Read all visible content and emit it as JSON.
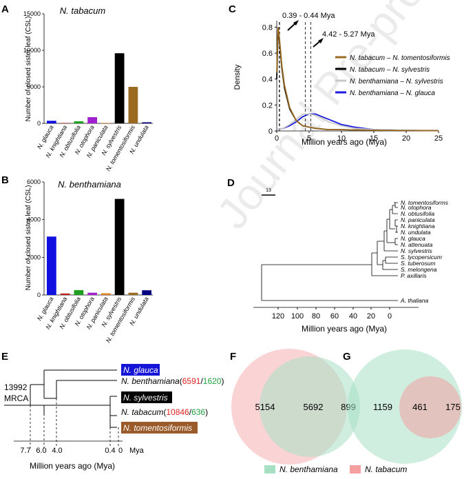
{
  "watermark": "Journal Pre-proof",
  "panels": {
    "A": {
      "letter": "A",
      "title": "N. tabacum",
      "ylabel": "Number of closed sister leaf (CSL)",
      "yticks": [
        "0",
        "5000",
        "10000",
        "15000"
      ]
    },
    "B": {
      "letter": "B",
      "title": "N. benthamiana",
      "ylabel": "Number of closed sister leaf (CSL)",
      "yticks": [
        "0",
        "2000",
        "4000",
        "6000"
      ]
    },
    "C": {
      "letter": "C",
      "xlabel": "Million years ago (Mya)",
      "ylabel": "Density",
      "ann1": "0.39 - 0.44 Mya",
      "ann2": "4.42 - 5.27 Mya",
      "xticks": [
        "0",
        "5",
        "10",
        "15",
        "20",
        "25"
      ],
      "yticks": [
        "0",
        "0.2",
        "0.4",
        "0.6",
        "0.8"
      ],
      "legend": [
        "N. tabacum – N. tomentosiformis",
        "N. tabacum – N. sylvestris",
        "N. benthamiana – N. sylvestris",
        "N. benthamiana – N. glauca"
      ]
    },
    "D": {
      "letter": "D",
      "scale": "13",
      "xlabel": "Million years ago (Mya)",
      "xticks": [
        "120",
        "100",
        "80",
        "60",
        "40",
        "20",
        "0"
      ],
      "taxa": [
        "N. tomentosiforms",
        "N. otophora",
        "N. obtusifolia",
        "N. paniculata",
        "N. knightiana",
        "N. undulata",
        "N. glauca",
        "N. attenuata",
        "N. sylvestris",
        "S. lycopersicum",
        "S. tuberosum",
        "S. melongena",
        "P. axillaris",
        "A. thaliana"
      ]
    },
    "E": {
      "letter": "E",
      "count": "13992",
      "mrca": "MRCA",
      "mya": "Mya",
      "xlabel": "Million years ago (Mya)",
      "ticks": [
        "7.7",
        "6.0",
        "4.0",
        "0.4",
        "0"
      ],
      "t1": "N. glauca",
      "t2": "N. benthamiana",
      "t2a": "(",
      "t2b": "6591",
      "t2c": "/",
      "t2d": "1620",
      "t2e": ")",
      "t3": "N. sylvestris",
      "t4": "N. tabacum",
      "t4a": "(",
      "t4b": "10846",
      "t4c": "/",
      "t4d": "636",
      "t4e": ")",
      "t5": "N. tomentosiformis"
    },
    "F": {
      "letter": "F",
      "left": "5154",
      "mid": "5692",
      "right": "899"
    },
    "G": {
      "letter": "G",
      "left": "1159",
      "mid": "461",
      "right": "175"
    },
    "legend": {
      "benth": "N. benthamiana",
      "tab": "N. tabacum"
    }
  },
  "chart_data": [
    {
      "type": "bar",
      "title": "N. tabacum",
      "ylabel": "Number of closed sister leaf (CSL)",
      "ylim": [
        0,
        15000
      ],
      "categories": [
        "N. glauca",
        "N. knightiana",
        "N. obtusifolia",
        "N. otophora",
        "N. paniculata",
        "N. sylvestris",
        "N. tomentosiformis",
        "N. undulata"
      ],
      "values": [
        350,
        60,
        280,
        850,
        60,
        9600,
        5000,
        150
      ],
      "colors": [
        "#1010e0",
        "#c02020",
        "#20a020",
        "#a020d0",
        "#e08020",
        "#000000",
        "#9a6a20",
        "#000080"
      ]
    },
    {
      "type": "bar",
      "title": "N. benthamiana",
      "ylabel": "Number of closed sister leaf (CSL)",
      "ylim": [
        0,
        6000
      ],
      "categories": [
        "N. glauca",
        "N. knightiana",
        "N. obtusifolia",
        "N. otophora",
        "N. paniculata",
        "N. sylvestris",
        "N. tomentosiformis",
        "N. undulata"
      ],
      "values": [
        3100,
        80,
        260,
        120,
        90,
        5100,
        120,
        250
      ],
      "colors": [
        "#1010e0",
        "#c02020",
        "#20a020",
        "#a020d0",
        "#e08020",
        "#000000",
        "#9a6a20",
        "#000080"
      ]
    },
    {
      "type": "line",
      "xlabel": "Million years ago (Mya)",
      "ylabel": "Density",
      "xlim": [
        0,
        25
      ],
      "ylim": [
        0,
        0.85
      ],
      "series": [
        {
          "name": "N. tabacum – N. tomentosiformis",
          "color": "#9a6a20",
          "x": [
            0,
            0.2,
            0.4,
            0.8,
            1.2,
            2,
            3,
            4,
            5,
            6,
            8,
            10,
            15,
            20,
            25
          ],
          "y": [
            0.45,
            0.8,
            0.72,
            0.5,
            0.35,
            0.18,
            0.08,
            0.04,
            0.03,
            0.02,
            0.01,
            0.01,
            0.005,
            0.003,
            0.002
          ]
        },
        {
          "name": "N. tabacum – N. sylvestris",
          "color": "#000000",
          "x": [
            0,
            0.2,
            0.4,
            0.8,
            1.2,
            2,
            3,
            4,
            5,
            6,
            8,
            10,
            15,
            20,
            25
          ],
          "y": [
            0.4,
            0.76,
            0.7,
            0.48,
            0.33,
            0.17,
            0.08,
            0.04,
            0.03,
            0.02,
            0.01,
            0.01,
            0.005,
            0.003,
            0.002
          ]
        },
        {
          "name": "N. benthamiana – N. sylvestris",
          "color": "#c8c8c8",
          "x": [
            0,
            1,
            2,
            3,
            4,
            5,
            6,
            7,
            8,
            10,
            12,
            15,
            20,
            25
          ],
          "y": [
            0.01,
            0.02,
            0.05,
            0.09,
            0.13,
            0.13,
            0.12,
            0.1,
            0.07,
            0.04,
            0.02,
            0.01,
            0.005,
            0.002
          ]
        },
        {
          "name": "N. benthamiana – N. glauca",
          "color": "#1a1ae0",
          "x": [
            0,
            1,
            2,
            3,
            4,
            5,
            6,
            7,
            8,
            10,
            12,
            15,
            20,
            25
          ],
          "y": [
            0.01,
            0.02,
            0.04,
            0.07,
            0.11,
            0.13,
            0.13,
            0.11,
            0.09,
            0.05,
            0.03,
            0.01,
            0.005,
            0.002
          ]
        }
      ]
    }
  ]
}
